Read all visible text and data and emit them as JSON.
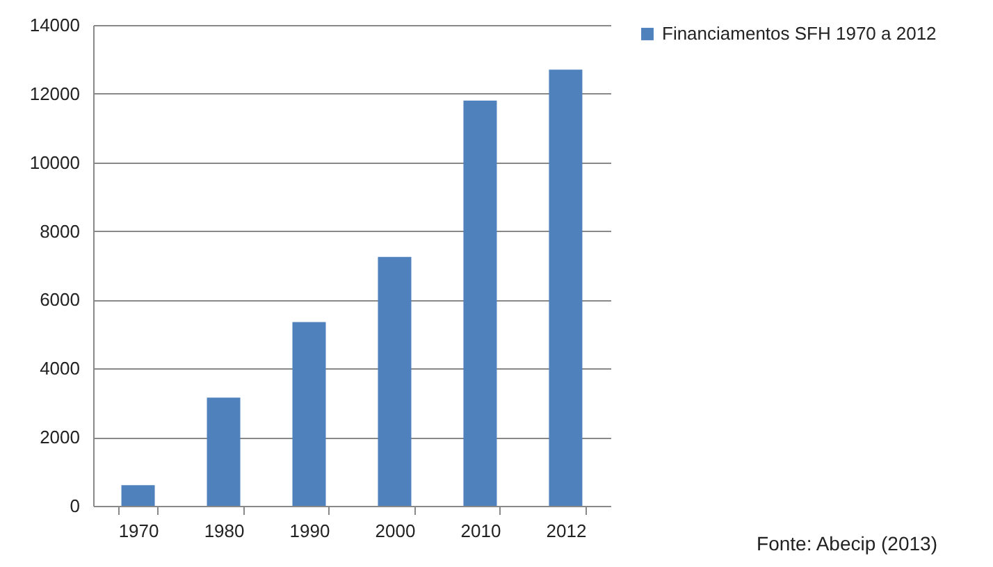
{
  "chart_data": {
    "type": "bar",
    "categories": [
      "1970",
      "1980",
      "1990",
      "2000",
      "2010",
      "2012"
    ],
    "series": [
      {
        "name": "Financiamentos SFH 1970 a 2012",
        "color": "#4f81bd",
        "values": [
          600,
          3150,
          5350,
          7250,
          11800,
          12700
        ]
      }
    ],
    "ylim": [
      0,
      14000
    ],
    "yticks": [
      0,
      2000,
      4000,
      6000,
      8000,
      10000,
      12000,
      14000
    ],
    "grid": "y",
    "legend": "right",
    "annotations": [
      "Fonte: Abecip (2013)"
    ]
  }
}
